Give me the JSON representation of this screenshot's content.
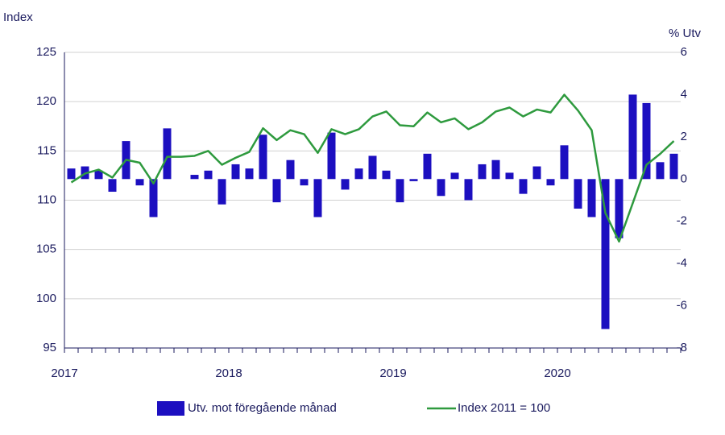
{
  "chart_data": {
    "type": "combo",
    "y_label": "Index",
    "y2_label": "% Utv",
    "categories": [
      "2017",
      null,
      null,
      null,
      null,
      null,
      null,
      null,
      null,
      null,
      null,
      null,
      "2018",
      null,
      null,
      null,
      null,
      null,
      null,
      null,
      null,
      null,
      null,
      null,
      "2019",
      null,
      null,
      null,
      null,
      null,
      null,
      null,
      null,
      null,
      null,
      null,
      "2020",
      null,
      null,
      null,
      null,
      null,
      null,
      null,
      null
    ],
    "series": [
      {
        "name": "Utv. mot föregående månad",
        "type": "bar",
        "axis": "y2",
        "color": "#1c0fc0",
        "values": [
          0.5,
          0.6,
          0.4,
          -0.6,
          1.8,
          -0.3,
          -1.8,
          2.4,
          0,
          0.2,
          0.4,
          -1.2,
          0.7,
          0.5,
          2.1,
          -1.1,
          0.9,
          -0.3,
          -1.8,
          2.2,
          -0.5,
          0.5,
          1.1,
          0.4,
          -1.1,
          -0.1,
          1.2,
          -0.8,
          0.3,
          -1.0,
          0.7,
          0.9,
          0.3,
          -0.7,
          0.6,
          -0.3,
          1.6,
          -1.4,
          -1.8,
          -7.1,
          -2.8,
          4.0,
          3.6,
          0.8,
          1.2
        ]
      },
      {
        "name": "Index 2011 = 100",
        "type": "line",
        "color": "#2e9a3e",
        "values": [
          111.8,
          112.7,
          113.1,
          112.3,
          114.1,
          113.8,
          111.7,
          114.4,
          114.4,
          114.5,
          115.0,
          113.6,
          114.3,
          114.9,
          117.3,
          116.1,
          117.1,
          116.7,
          114.8,
          117.2,
          116.7,
          117.2,
          118.5,
          119.0,
          117.6,
          117.5,
          118.9,
          117.9,
          118.3,
          117.2,
          117.9,
          119.0,
          119.4,
          118.5,
          119.2,
          118.9,
          120.7,
          119.1,
          117.1,
          108.7,
          105.8,
          109.7,
          113.6,
          114.7,
          116.0
        ]
      }
    ],
    "ylim": [
      95,
      125
    ],
    "yticks": [
      95,
      100,
      105,
      110,
      115,
      120,
      125
    ],
    "y2lim": [
      -8,
      6
    ],
    "y2ticks": [
      -8,
      -6,
      -4,
      -2,
      0,
      2,
      4,
      6
    ],
    "grid": true,
    "legend": "bottom"
  }
}
